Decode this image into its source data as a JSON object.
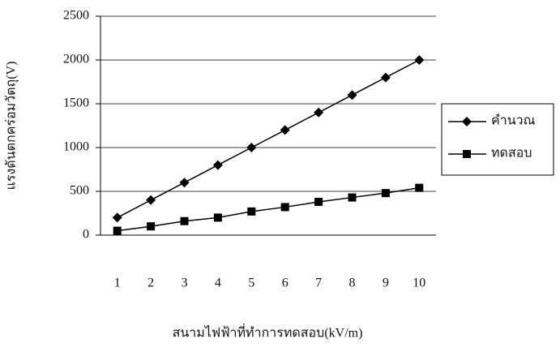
{
  "chart_data": {
    "type": "line",
    "x_label": "สนามไฟฟ้าที่ทำการทดสอบ(kV/m)",
    "y_label": "แรงดันตกคร่อมวัตถุ(V)",
    "categories": [
      "1",
      "2",
      "3",
      "4",
      "5",
      "6",
      "7",
      "8",
      "9",
      "10"
    ],
    "series": [
      {
        "name": "คำนวณ",
        "color": "#000000",
        "marker": "diamond",
        "values": [
          200,
          400,
          600,
          800,
          1000,
          1200,
          1400,
          1600,
          1800,
          2000
        ]
      },
      {
        "name": "ทดสอบ",
        "color": "#000000",
        "marker": "square",
        "values": [
          50,
          100,
          160,
          200,
          270,
          320,
          380,
          430,
          480,
          540
        ]
      }
    ],
    "ylim": [
      0,
      2500
    ],
    "yticks": [
      0,
      500,
      1000,
      1500,
      2000,
      2500
    ],
    "grid": true,
    "legend": "right"
  }
}
